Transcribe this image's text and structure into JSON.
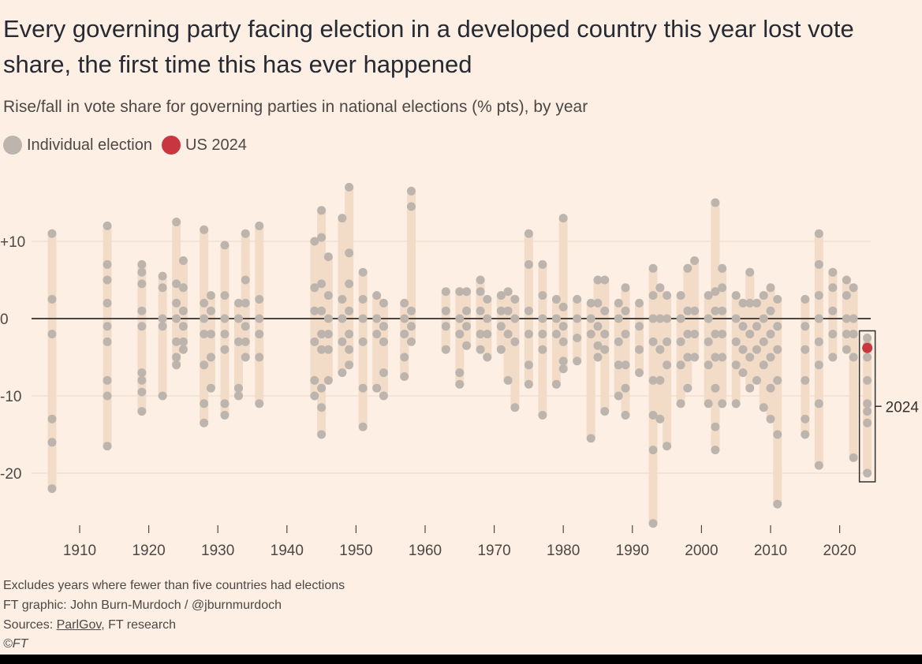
{
  "header": {
    "title": "Every governing party facing election in a developed country this year lost vote share, the first time this has ever happened",
    "subtitle": "Rise/fall in vote share for governing parties in national elections (% pts), by year"
  },
  "legend": {
    "individual": "Individual election",
    "us": "US 2024"
  },
  "footer": {
    "note": "Excludes years where fewer than five countries had elections",
    "credit": "FT graphic: John Burn-Murdoch / @jburnmurdoch",
    "sources_prefix": "Sources: ",
    "sources_link": "ParlGov",
    "sources_suffix": ", FT research",
    "copyright": "©FT"
  },
  "colors": {
    "background": "#fdefe4",
    "range_bar": "#f2dcc8",
    "dot": "#bdb5ad",
    "us_dot": "#c8373f",
    "zero_line": "#4a4644",
    "grid": "#ead8c9"
  },
  "chart_data": {
    "type": "scatter",
    "title": "Rise/fall in vote share for governing parties in national elections (% pts), by year",
    "xlabel": "",
    "ylabel": "% pts",
    "xlim": [
      1904,
      2028
    ],
    "ylim": [
      -27,
      17
    ],
    "x_ticks": [
      1910,
      1920,
      1930,
      1940,
      1950,
      1960,
      1970,
      1980,
      1990,
      2000,
      2010,
      2020
    ],
    "y_ticks": [
      {
        "value": 10,
        "label": "+10"
      },
      {
        "value": 0,
        "label": "0"
      },
      {
        "value": -10,
        "label": "-10"
      },
      {
        "value": -20,
        "label": "-20"
      }
    ],
    "highlight_year": 2024,
    "highlight_label": "2024",
    "series": [
      {
        "name": "Individual election",
        "points": [
          {
            "year": 1906,
            "values": [
              11,
              2.5,
              -2,
              -13,
              -16,
              -22
            ]
          },
          {
            "year": 1914,
            "values": [
              12,
              7,
              5,
              2,
              -1,
              -3,
              -8,
              -10,
              -16.5
            ]
          },
          {
            "year": 1919,
            "values": [
              7,
              6,
              4.5,
              1,
              -1,
              -7,
              -8,
              -9.5,
              -12
            ]
          },
          {
            "year": 1922,
            "values": [
              5.5,
              4,
              0,
              -1,
              -10
            ]
          },
          {
            "year": 1924,
            "values": [
              12.5,
              4.5,
              2,
              0,
              -3,
              -5,
              -6
            ]
          },
          {
            "year": 1925,
            "values": [
              7.5,
              4,
              1,
              -1,
              -3,
              -4
            ]
          },
          {
            "year": 1928,
            "values": [
              11.5,
              2,
              0,
              -2,
              -6,
              -11,
              -13.5
            ]
          },
          {
            "year": 1929,
            "values": [
              3,
              1,
              -2,
              -5,
              -9
            ]
          },
          {
            "year": 1931,
            "values": [
              9.5,
              3,
              0,
              -2,
              -4,
              -11,
              -12.5
            ]
          },
          {
            "year": 1933,
            "values": [
              2,
              0,
              -3,
              -9,
              -10
            ]
          },
          {
            "year": 1934,
            "values": [
              11,
              5,
              2,
              -1,
              -3,
              -5
            ]
          },
          {
            "year": 1936,
            "values": [
              12,
              2.5,
              0,
              -2,
              -5,
              -11
            ]
          },
          {
            "year": 1944,
            "values": [
              10,
              4,
              1,
              -3,
              -8,
              -10
            ]
          },
          {
            "year": 1945,
            "values": [
              14,
              10.5,
              4.5,
              1,
              -2,
              -4,
              -9,
              -11.5,
              -15
            ]
          },
          {
            "year": 1946,
            "values": [
              8,
              3,
              0,
              -2,
              -4,
              -8
            ]
          },
          {
            "year": 1948,
            "values": [
              13,
              2.5,
              0,
              -3,
              -7
            ]
          },
          {
            "year": 1949,
            "values": [
              17,
              8.5,
              4.5,
              1,
              -2,
              -4,
              -6
            ]
          },
          {
            "year": 1951,
            "values": [
              6,
              2.5,
              0,
              -3,
              -9,
              -14
            ]
          },
          {
            "year": 1953,
            "values": [
              3,
              0,
              -2,
              -9
            ]
          },
          {
            "year": 1954,
            "values": [
              2,
              -1,
              -3,
              -7,
              -10
            ]
          },
          {
            "year": 1957,
            "values": [
              2,
              0,
              -2,
              -5,
              -7.5
            ]
          },
          {
            "year": 1958,
            "values": [
              16.5,
              14.5,
              1,
              -1,
              -3
            ]
          },
          {
            "year": 1963,
            "values": [
              3.5,
              1,
              -1,
              -4
            ]
          },
          {
            "year": 1965,
            "values": [
              3.5,
              0,
              -2,
              -7,
              -8.5
            ]
          },
          {
            "year": 1966,
            "values": [
              3.5,
              1,
              -1,
              -3.5
            ]
          },
          {
            "year": 1968,
            "values": [
              5,
              3.5,
              1,
              -2,
              -4
            ]
          },
          {
            "year": 1969,
            "values": [
              2.5,
              0,
              -2,
              -5
            ]
          },
          {
            "year": 1971,
            "values": [
              3,
              1,
              -1,
              -4
            ]
          },
          {
            "year": 1972,
            "values": [
              3.5,
              1,
              -2,
              -8
            ]
          },
          {
            "year": 1973,
            "values": [
              2.5,
              0,
              -3,
              -11.5
            ]
          },
          {
            "year": 1975,
            "values": [
              11,
              7,
              1,
              -2,
              -6,
              -8.5
            ]
          },
          {
            "year": 1977,
            "values": [
              7,
              3,
              0,
              -2,
              -4,
              -12.5
            ]
          },
          {
            "year": 1979,
            "values": [
              2.5,
              0,
              -2,
              -8.5
            ]
          },
          {
            "year": 1980,
            "values": [
              13,
              1.5,
              -1,
              -3,
              -5.5,
              -6.5
            ]
          },
          {
            "year": 1982,
            "values": [
              2.5,
              0,
              -2.5,
              -5.5
            ]
          },
          {
            "year": 1984,
            "values": [
              2,
              0,
              -2,
              -15.5
            ]
          },
          {
            "year": 1985,
            "values": [
              5,
              2,
              -1,
              -3.5,
              -5
            ]
          },
          {
            "year": 1986,
            "values": [
              5,
              1,
              -2,
              -4,
              -12
            ]
          },
          {
            "year": 1988,
            "values": [
              2,
              0,
              -3,
              -6,
              -10
            ]
          },
          {
            "year": 1989,
            "values": [
              4,
              1,
              -2,
              -6,
              -9,
              -12.5
            ]
          },
          {
            "year": 1991,
            "values": [
              2,
              -1,
              -4,
              -7
            ]
          },
          {
            "year": 1993,
            "values": [
              6.5,
              3,
              0,
              -3,
              -8,
              -12.5,
              -17,
              -26.5
            ]
          },
          {
            "year": 1994,
            "values": [
              4,
              0,
              -4,
              -8,
              -13
            ]
          },
          {
            "year": 1995,
            "values": [
              3,
              0,
              -3,
              -6,
              -16.5
            ]
          },
          {
            "year": 1997,
            "values": [
              3,
              0,
              -3,
              -6,
              -11
            ]
          },
          {
            "year": 1998,
            "values": [
              6.5,
              1,
              -2,
              -5,
              -9
            ]
          },
          {
            "year": 1999,
            "values": [
              7.5,
              1,
              -2,
              -5
            ]
          },
          {
            "year": 2001,
            "values": [
              3,
              0,
              -3,
              -6,
              -11
            ]
          },
          {
            "year": 2002,
            "values": [
              15,
              3.5,
              1,
              -2,
              -5,
              -9,
              -14,
              -17
            ]
          },
          {
            "year": 2003,
            "values": [
              6.5,
              4,
              1,
              -2,
              -5,
              -11
            ]
          },
          {
            "year": 2005,
            "values": [
              3,
              0,
              -3,
              -6,
              -11
            ]
          },
          {
            "year": 2006,
            "values": [
              2,
              -1,
              -4,
              -7
            ]
          },
          {
            "year": 2007,
            "values": [
              6,
              2,
              -2,
              -5,
              -9
            ]
          },
          {
            "year": 2008,
            "values": [
              2,
              -1,
              -4,
              -8
            ]
          },
          {
            "year": 2009,
            "values": [
              3,
              0,
              -3,
              -6,
              -11.5
            ]
          },
          {
            "year": 2010,
            "values": [
              4,
              1,
              -2,
              -5,
              -9,
              -13
            ]
          },
          {
            "year": 2011,
            "values": [
              2.5,
              -1,
              -4,
              -8,
              -15,
              -24
            ]
          },
          {
            "year": 2015,
            "values": [
              2.5,
              -1,
              -4,
              -8,
              -13,
              -15
            ]
          },
          {
            "year": 2017,
            "values": [
              11,
              7,
              3,
              0,
              -3,
              -6,
              -11,
              -19
            ]
          },
          {
            "year": 2019,
            "values": [
              6,
              4,
              1,
              -2,
              -5
            ]
          },
          {
            "year": 2021,
            "values": [
              5,
              3,
              0,
              -2,
              -4
            ]
          },
          {
            "year": 2022,
            "values": [
              4,
              0,
              -2,
              -5,
              -18
            ]
          },
          {
            "year": 2024,
            "values": [
              -2.5,
              -3.5,
              -5,
              -8,
              -11,
              -12,
              -13.5,
              -20
            ]
          }
        ]
      },
      {
        "name": "US 2024",
        "points": [
          {
            "year": 2024,
            "values": [
              -3.8
            ]
          }
        ]
      }
    ]
  }
}
